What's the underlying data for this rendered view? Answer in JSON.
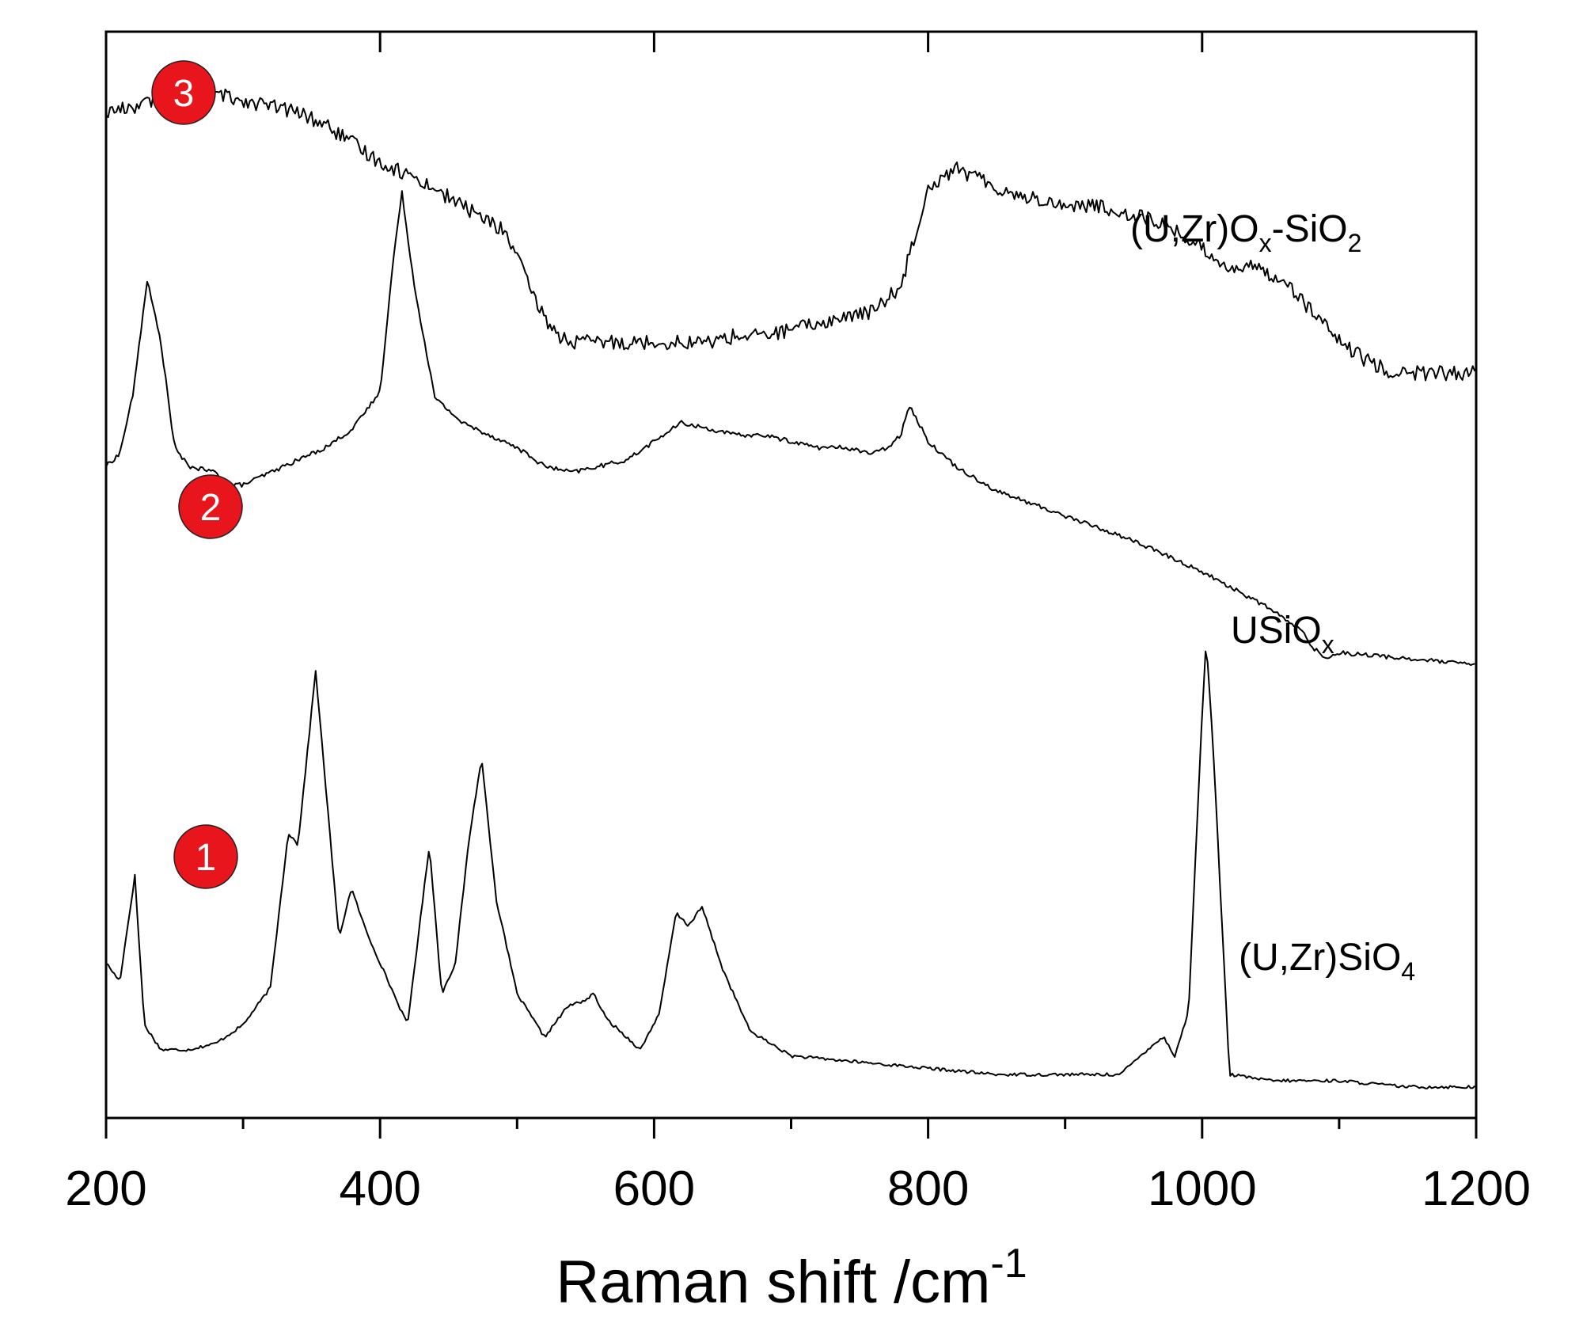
{
  "chart_data": {
    "type": "line",
    "title": "",
    "xlabel": "Raman shift /cm",
    "xlabel_superscript": "-1",
    "ylabel": "",
    "xlim": [
      200,
      1200
    ],
    "major_ticks": [
      200,
      400,
      600,
      800,
      1000,
      1200
    ],
    "minor_ticks": [
      300,
      500,
      700,
      900,
      1100
    ],
    "tick_labels": [
      "200",
      "400",
      "600",
      "800",
      "1000",
      "1200"
    ],
    "grid": false,
    "y_axis_units": "arbitrary (spectra offset vertically)",
    "series": [
      {
        "id": "1",
        "name": "(U,Zr)SiO",
        "name_subscript": "4",
        "baseline": 0.0,
        "x": [
          200,
          210,
          221,
          228,
          240,
          260,
          280,
          300,
          320,
          333,
          340,
          353,
          370,
          379,
          390,
          420,
          436,
          445,
          455,
          465,
          474,
          485,
          500,
          520,
          537,
          550,
          556,
          565,
          590,
          604,
          616,
          625,
          635,
          650,
          670,
          700,
          750,
          800,
          850,
          900,
          940,
          965,
          972,
          980,
          990,
          1000,
          1003,
          1008,
          1020,
          1050,
          1100,
          1150,
          1200
        ],
        "y": [
          0.2,
          0.17,
          0.34,
          0.1,
          0.06,
          0.06,
          0.07,
          0.1,
          0.16,
          0.41,
          0.39,
          0.67,
          0.24,
          0.32,
          0.25,
          0.1,
          0.39,
          0.15,
          0.2,
          0.4,
          0.53,
          0.3,
          0.15,
          0.08,
          0.13,
          0.14,
          0.15,
          0.11,
          0.06,
          0.12,
          0.28,
          0.26,
          0.29,
          0.19,
          0.09,
          0.05,
          0.04,
          0.03,
          0.02,
          0.02,
          0.02,
          0.07,
          0.08,
          0.05,
          0.12,
          0.6,
          0.72,
          0.55,
          0.02,
          0.01,
          0.01,
          0.0,
          0.0
        ]
      },
      {
        "id": "2",
        "name": "USiO",
        "name_subscript": "x",
        "baseline": 0.67,
        "x": [
          200,
          210,
          220,
          230,
          240,
          250,
          260,
          280,
          290,
          300,
          320,
          340,
          360,
          380,
          400,
          410,
          416,
          425,
          440,
          460,
          480,
          500,
          520,
          540,
          560,
          580,
          600,
          620,
          640,
          660,
          680,
          700,
          720,
          740,
          760,
          770,
          780,
          786,
          800,
          820,
          850,
          900,
          950,
          1000,
          1050,
          1075,
          1080,
          1090,
          1100,
          1150,
          1200
        ],
        "y": [
          0.33,
          0.35,
          0.45,
          0.63,
          0.53,
          0.36,
          0.33,
          0.32,
          0.3,
          0.3,
          0.32,
          0.34,
          0.36,
          0.39,
          0.45,
          0.67,
          0.77,
          0.62,
          0.44,
          0.4,
          0.38,
          0.36,
          0.33,
          0.32,
          0.33,
          0.34,
          0.37,
          0.4,
          0.39,
          0.38,
          0.38,
          0.37,
          0.36,
          0.36,
          0.35,
          0.36,
          0.38,
          0.43,
          0.37,
          0.33,
          0.29,
          0.25,
          0.21,
          0.16,
          0.1,
          0.06,
          0.04,
          0.02,
          0.03,
          0.02,
          0.01
        ]
      },
      {
        "id": "3",
        "name": "(U,Zr)O",
        "name_subscript": "x",
        "name_suffix": "-SiO",
        "name_suffix_subscript": "2",
        "baseline": 1.15,
        "x": [
          200,
          220,
          240,
          260,
          280,
          300,
          320,
          340,
          360,
          380,
          400,
          430,
          460,
          490,
          500,
          510,
          520,
          530,
          540,
          560,
          580,
          600,
          620,
          640,
          660,
          680,
          700,
          720,
          740,
          760,
          780,
          800,
          820,
          840,
          860,
          880,
          900,
          920,
          940,
          960,
          980,
          1000,
          1020,
          1040,
          1060,
          1080,
          1100,
          1120,
          1140,
          1160,
          1180,
          1200
        ],
        "y": [
          0.42,
          0.43,
          0.44,
          0.45,
          0.45,
          0.44,
          0.43,
          0.42,
          0.4,
          0.37,
          0.34,
          0.31,
          0.27,
          0.23,
          0.19,
          0.13,
          0.09,
          0.06,
          0.05,
          0.05,
          0.05,
          0.05,
          0.05,
          0.05,
          0.06,
          0.06,
          0.07,
          0.08,
          0.09,
          0.1,
          0.14,
          0.3,
          0.33,
          0.31,
          0.29,
          0.28,
          0.27,
          0.27,
          0.26,
          0.25,
          0.23,
          0.2,
          0.17,
          0.17,
          0.15,
          0.1,
          0.05,
          0.02,
          0.0,
          0.0,
          0.0,
          0.0
        ]
      }
    ],
    "markers": [
      {
        "label": "1",
        "series": "1",
        "color": "#e8161c"
      },
      {
        "label": "2",
        "series": "2",
        "color": "#e8161c"
      },
      {
        "label": "3",
        "series": "3",
        "color": "#e8161c"
      }
    ]
  }
}
